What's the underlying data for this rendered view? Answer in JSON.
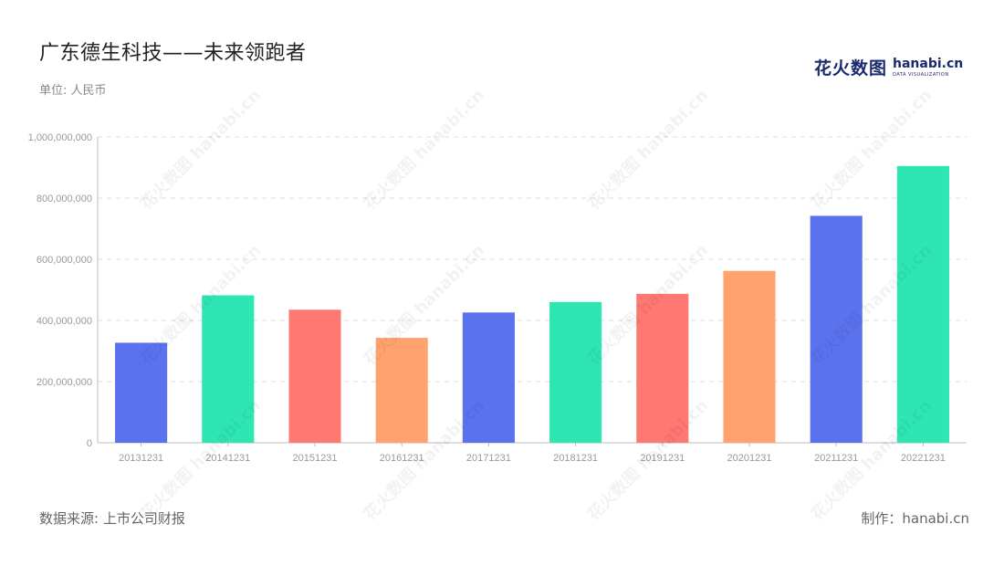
{
  "header": {
    "title": "广东德生科技——未来领跑者",
    "unit": "单位: 人民币"
  },
  "logo": {
    "cn": "花火数图",
    "en": "hanabi.cn",
    "sub": "DATA VISUALIZATION"
  },
  "footer": {
    "source": "数据来源: 上市公司财报",
    "maker": "制作：hanabi.cn"
  },
  "watermark": "花火数图 hanabi.cn",
  "chart_data": {
    "type": "bar",
    "title": "广东德生科技——未来领跑者",
    "xlabel": "",
    "ylabel": "",
    "categories": [
      "20131231",
      "20141231",
      "20151231",
      "20161231",
      "20171231",
      "20181231",
      "20191231",
      "20201231",
      "20211231",
      "20221231"
    ],
    "values": [
      327000000,
      482000000,
      435000000,
      343000000,
      426000000,
      460000000,
      487000000,
      562000000,
      742000000,
      905000000
    ],
    "colors": [
      "#5b72ee",
      "#2ee6b4",
      "#ff7872",
      "#ffa26e",
      "#5b72ee",
      "#2ee6b4",
      "#ff7872",
      "#ffa26e",
      "#5b72ee",
      "#2ee6b4"
    ],
    "ylim": [
      0,
      1000000000
    ],
    "yticks": [
      0,
      200000000,
      400000000,
      600000000,
      800000000,
      1000000000
    ],
    "ytick_labels": [
      "0",
      "200,000,000",
      "400,000,000",
      "600,000,000",
      "800,000,000",
      "1,000,000,000"
    ],
    "grid": true,
    "legend": "none"
  }
}
